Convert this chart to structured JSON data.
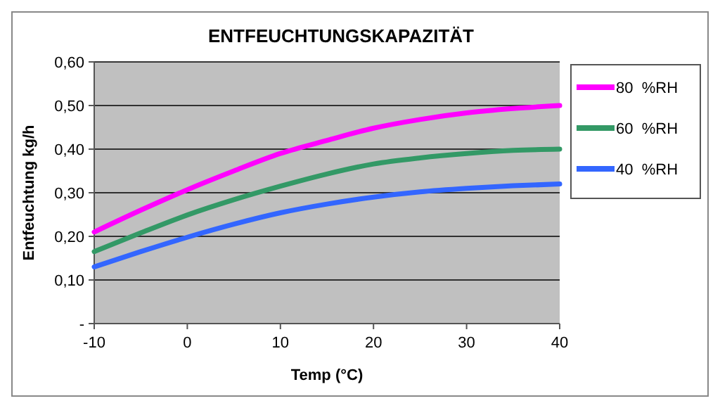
{
  "chart_data": {
    "type": "line",
    "title": "ENTFEUCHTUNGSKAPAZITÄT",
    "xlabel": "Temp (°C)",
    "ylabel": "Entfeuchtung kg/h",
    "x": [
      -10,
      -5,
      0,
      5,
      10,
      15,
      20,
      25,
      30,
      35,
      40
    ],
    "series": [
      {
        "name": "80  %RH",
        "color": "#ff00ff",
        "values": [
          0.21,
          0.26,
          0.307,
          0.35,
          0.39,
          0.42,
          0.448,
          0.468,
          0.483,
          0.493,
          0.5
        ]
      },
      {
        "name": "60  %RH",
        "color": "#339966",
        "values": [
          0.165,
          0.208,
          0.249,
          0.284,
          0.315,
          0.343,
          0.366,
          0.38,
          0.39,
          0.397,
          0.4
        ]
      },
      {
        "name": "40  %RH",
        "color": "#3366ff",
        "values": [
          0.13,
          0.165,
          0.198,
          0.228,
          0.254,
          0.274,
          0.29,
          0.302,
          0.31,
          0.316,
          0.32
        ]
      }
    ],
    "xlim": [
      -10,
      40
    ],
    "xticks": [
      -10,
      0,
      10,
      20,
      30,
      40
    ],
    "ylim": [
      0,
      0.6
    ],
    "yticks": [
      {
        "value": 0,
        "label": "-"
      },
      {
        "value": 0.1,
        "label": "0,10"
      },
      {
        "value": 0.2,
        "label": "0,20"
      },
      {
        "value": 0.3,
        "label": "0,30"
      },
      {
        "value": 0.4,
        "label": "0,40"
      },
      {
        "value": 0.5,
        "label": "0,50"
      },
      {
        "value": 0.6,
        "label": "0,60"
      }
    ],
    "grid": "y",
    "legend": "right",
    "marker": "none",
    "line_style": "solid"
  }
}
